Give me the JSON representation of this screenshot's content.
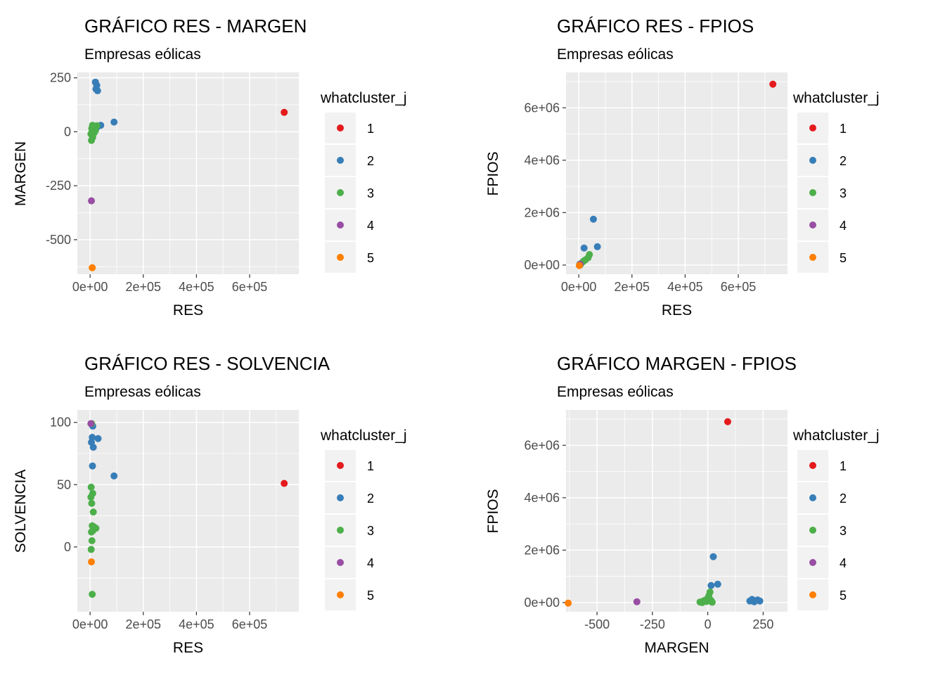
{
  "figure": {
    "background": "#FFFFFF"
  },
  "palette": {
    "cluster_colors": [
      "#E41A1C",
      "#377EB8",
      "#4DAF4A",
      "#984EA3",
      "#FF7F00"
    ],
    "panel_bg": "#EBEBEB",
    "grid_color": "#FFFFFF",
    "legend_key_bg": "#F2F2F2",
    "tick_mark_color": "#333333",
    "tick_text_color": "#4D4D4D",
    "text_color": "#000000"
  },
  "chart_data": [
    {
      "type": "scatter",
      "title": "GRÁFICO RES - MARGEN",
      "subtitle": "Empresas eólicas",
      "xlabel": "RES",
      "ylabel": "MARGEN",
      "xlim": [
        -48000,
        785000
      ],
      "ylim": [
        -660,
        275
      ],
      "grid": true,
      "xticks": {
        "values": [
          0,
          200000,
          400000,
          600000
        ],
        "labels": [
          "0e+00",
          "2e+05",
          "4e+05",
          "6e+05"
        ]
      },
      "yticks": {
        "values": [
          250,
          0,
          -250,
          -500
        ],
        "labels": [
          "250",
          "0",
          "-250",
          "-500"
        ]
      },
      "legend": {
        "title": "whatcluster_j",
        "entries": [
          "1",
          "2",
          "3",
          "4",
          "5"
        ],
        "position": "right"
      },
      "series": [
        {
          "name": "1",
          "points": [
            [
              730000,
              90
            ]
          ]
        },
        {
          "name": "2",
          "points": [
            [
              20000,
              230
            ],
            [
              25000,
              215
            ],
            [
              22000,
              198
            ],
            [
              28000,
              190
            ],
            [
              90000,
              45
            ],
            [
              40000,
              30
            ],
            [
              25000,
              20
            ]
          ]
        },
        {
          "name": "3",
          "points": [
            [
              5000,
              -40
            ],
            [
              10000,
              -25
            ],
            [
              3000,
              -10
            ],
            [
              15000,
              -5
            ],
            [
              8000,
              0
            ],
            [
              20000,
              5
            ],
            [
              12000,
              10
            ],
            [
              6000,
              15
            ],
            [
              18000,
              22
            ],
            [
              25000,
              28
            ],
            [
              9000,
              30
            ]
          ]
        },
        {
          "name": "4",
          "points": [
            [
              5000,
              -320
            ]
          ]
        },
        {
          "name": "5",
          "points": [
            [
              8000,
              -630
            ]
          ]
        }
      ]
    },
    {
      "type": "scatter",
      "title": "GRÁFICO RES - FPIOS",
      "subtitle": "Empresas eólicas",
      "xlabel": "RES",
      "ylabel": "FPIOS",
      "xlim": [
        -48000,
        785000
      ],
      "ylim": [
        -350000,
        7350000
      ],
      "grid": true,
      "xticks": {
        "values": [
          0,
          200000,
          400000,
          600000
        ],
        "labels": [
          "0e+00",
          "2e+05",
          "4e+05",
          "6e+05"
        ]
      },
      "yticks": {
        "values": [
          0,
          2000000,
          4000000,
          6000000
        ],
        "labels": [
          "0e+00",
          "2e+06",
          "4e+06",
          "6e+06"
        ]
      },
      "legend": {
        "title": "whatcluster_j",
        "entries": [
          "1",
          "2",
          "3",
          "4",
          "5"
        ],
        "position": "right"
      },
      "series": [
        {
          "name": "1",
          "points": [
            [
              730000,
              6900000
            ]
          ]
        },
        {
          "name": "2",
          "points": [
            [
              20000,
              650000
            ],
            [
              55000,
              1750000
            ],
            [
              70000,
              700000
            ]
          ]
        },
        {
          "name": "3",
          "points": [
            [
              3000,
              20000
            ],
            [
              8000,
              60000
            ],
            [
              15000,
              120000
            ],
            [
              25000,
              200000
            ],
            [
              35000,
              280000
            ],
            [
              40000,
              400000
            ],
            [
              5000,
              0
            ],
            [
              18000,
              150000
            ]
          ]
        },
        {
          "name": "4",
          "points": [
            [
              5000,
              30000
            ]
          ]
        },
        {
          "name": "5",
          "points": [
            [
              2000,
              -20000
            ]
          ]
        }
      ]
    },
    {
      "type": "scatter",
      "title": "GRÁFICO RES - SOLVENCIA",
      "subtitle": "Empresas eólicas",
      "xlabel": "RES",
      "ylabel": "SOLVENCIA",
      "xlim": [
        -48000,
        785000
      ],
      "ylim": [
        -52,
        110
      ],
      "grid": true,
      "xticks": {
        "values": [
          0,
          200000,
          400000,
          600000
        ],
        "labels": [
          "0e+00",
          "2e+05",
          "4e+05",
          "6e+05"
        ]
      },
      "yticks": {
        "values": [
          100,
          50,
          0
        ],
        "labels": [
          "100",
          "50",
          "0"
        ]
      },
      "legend": {
        "title": "whatcluster_j",
        "entries": [
          "1",
          "2",
          "3",
          "4",
          "5"
        ],
        "position": "right"
      },
      "series": [
        {
          "name": "1",
          "points": [
            [
              730000,
              51
            ]
          ]
        },
        {
          "name": "2",
          "points": [
            [
              10000,
              97
            ],
            [
              8000,
              88
            ],
            [
              30000,
              87
            ],
            [
              5000,
              84
            ],
            [
              12000,
              80
            ],
            [
              9000,
              65
            ],
            [
              90000,
              57
            ]
          ]
        },
        {
          "name": "3",
          "points": [
            [
              6000,
              99
            ],
            [
              4000,
              48
            ],
            [
              10000,
              43
            ],
            [
              3000,
              40
            ],
            [
              6000,
              35
            ],
            [
              12000,
              28
            ],
            [
              8000,
              17
            ],
            [
              15000,
              16
            ],
            [
              22000,
              15
            ],
            [
              10000,
              13
            ],
            [
              5000,
              12
            ],
            [
              7000,
              5
            ],
            [
              4000,
              -2
            ],
            [
              8000,
              -38
            ]
          ]
        },
        {
          "name": "4",
          "points": [
            [
              3000,
              99
            ]
          ]
        },
        {
          "name": "5",
          "points": [
            [
              5000,
              -12
            ]
          ]
        }
      ]
    },
    {
      "type": "scatter",
      "title": "GRÁFICO MARGEN - FPIOS",
      "subtitle": "Empresas eólicas",
      "xlabel": "MARGEN",
      "ylabel": "FPIOS",
      "xlim": [
        -640,
        360
      ],
      "ylim": [
        -350000,
        7350000
      ],
      "grid": true,
      "xticks": {
        "values": [
          -500,
          -250,
          0,
          250
        ],
        "labels": [
          "-500",
          "-250",
          "0",
          "250"
        ]
      },
      "yticks": {
        "values": [
          0,
          2000000,
          4000000,
          6000000
        ],
        "labels": [
          "0e+00",
          "2e+06",
          "4e+06",
          "6e+06"
        ]
      },
      "legend": {
        "title": "whatcluster_j",
        "entries": [
          "1",
          "2",
          "3",
          "4",
          "5"
        ],
        "position": "right"
      },
      "series": [
        {
          "name": "1",
          "points": [
            [
              90,
              6900000
            ]
          ]
        },
        {
          "name": "2",
          "points": [
            [
              25,
              1750000
            ],
            [
              45,
              700000
            ],
            [
              15,
              650000
            ],
            [
              190,
              60000
            ],
            [
              200,
              120000
            ],
            [
              210,
              30000
            ],
            [
              225,
              100000
            ],
            [
              235,
              60000
            ]
          ]
        },
        {
          "name": "3",
          "points": [
            [
              -35,
              20000
            ],
            [
              -20,
              60000
            ],
            [
              -10,
              100000
            ],
            [
              0,
              160000
            ],
            [
              5,
              260000
            ],
            [
              10,
              400000
            ],
            [
              -25,
              0
            ],
            [
              15,
              80000
            ],
            [
              -5,
              40000
            ],
            [
              20,
              10000
            ]
          ]
        },
        {
          "name": "4",
          "points": [
            [
              -320,
              30000
            ]
          ]
        },
        {
          "name": "5",
          "points": [
            [
              -630,
              -20000
            ]
          ]
        }
      ]
    }
  ]
}
